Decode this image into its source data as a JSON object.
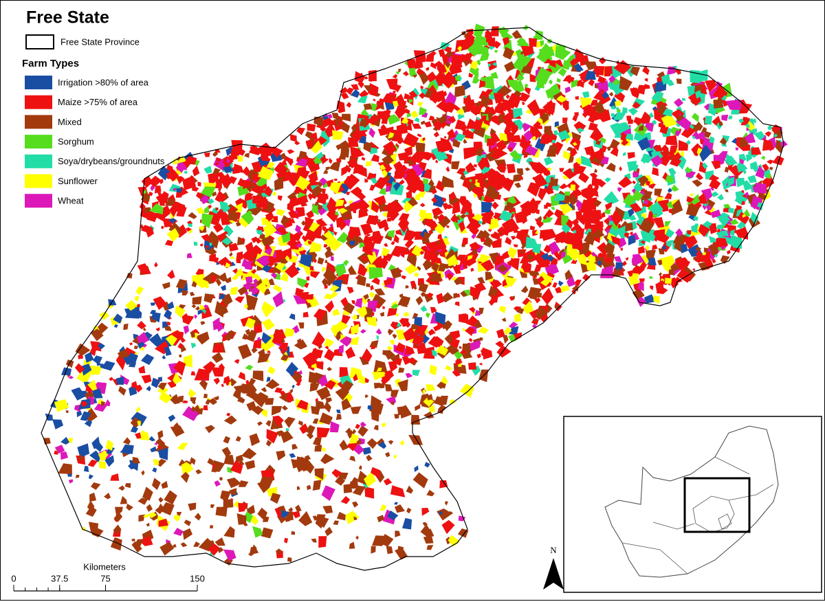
{
  "title": "Free State",
  "boundary_legend": "Free State Province",
  "legend": {
    "title": "Farm Types",
    "items": [
      {
        "label": "Irrigation >80% of area",
        "color": "#1a4ea3"
      },
      {
        "label": "Maize >75% of area",
        "color": "#ee1111"
      },
      {
        "label": "Mixed",
        "color": "#a33a0e"
      },
      {
        "label": "Sorghum",
        "color": "#55dd1e"
      },
      {
        "label": "Soya/drybeans/groundnuts",
        "color": "#22dda6"
      },
      {
        "label": "Sunflower",
        "color": "#ffff00"
      },
      {
        "label": "Wheat",
        "color": "#dd18b8"
      }
    ]
  },
  "scale_bar": {
    "unit": "Kilometers",
    "ticks": [
      0,
      37.5,
      75,
      150
    ]
  },
  "north_arrow": "N"
}
